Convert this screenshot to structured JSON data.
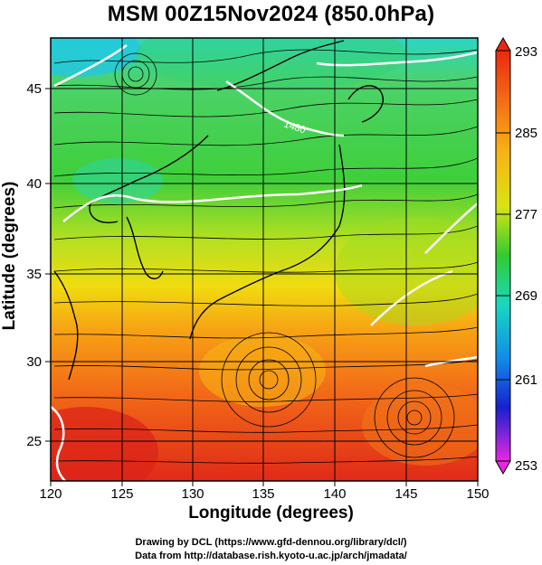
{
  "header": {
    "title": "MSM 00Z15Nov2024 (850.0hPa)"
  },
  "axes": {
    "xlabel": "Longitude (degrees)",
    "ylabel": "Latitude  (degrees)",
    "x_ticks": [
      "120",
      "125",
      "130",
      "135",
      "140",
      "145",
      "150"
    ],
    "y_ticks": [
      "25",
      "30",
      "35",
      "40",
      "45"
    ],
    "x_range": [
      120,
      150
    ],
    "y_range": [
      22.4,
      47.6
    ]
  },
  "colorbar": {
    "labels": [
      "293",
      "285",
      "277",
      "269",
      "261",
      "253"
    ],
    "range": [
      253,
      293
    ]
  },
  "contour_labels": [
    "1480"
  ],
  "credits": {
    "line1": "Drawing by DCL (https://www.gfd-dennou.org/library/dcl/)",
    "line2": "Data from http://database.rish.kyoto-u.ac.jp/arch/jmadata/"
  },
  "colors": {
    "warm": "#e8301c",
    "mid": "#f5d800",
    "cool": "#22c83c",
    "cold": "#00c8e0"
  }
}
